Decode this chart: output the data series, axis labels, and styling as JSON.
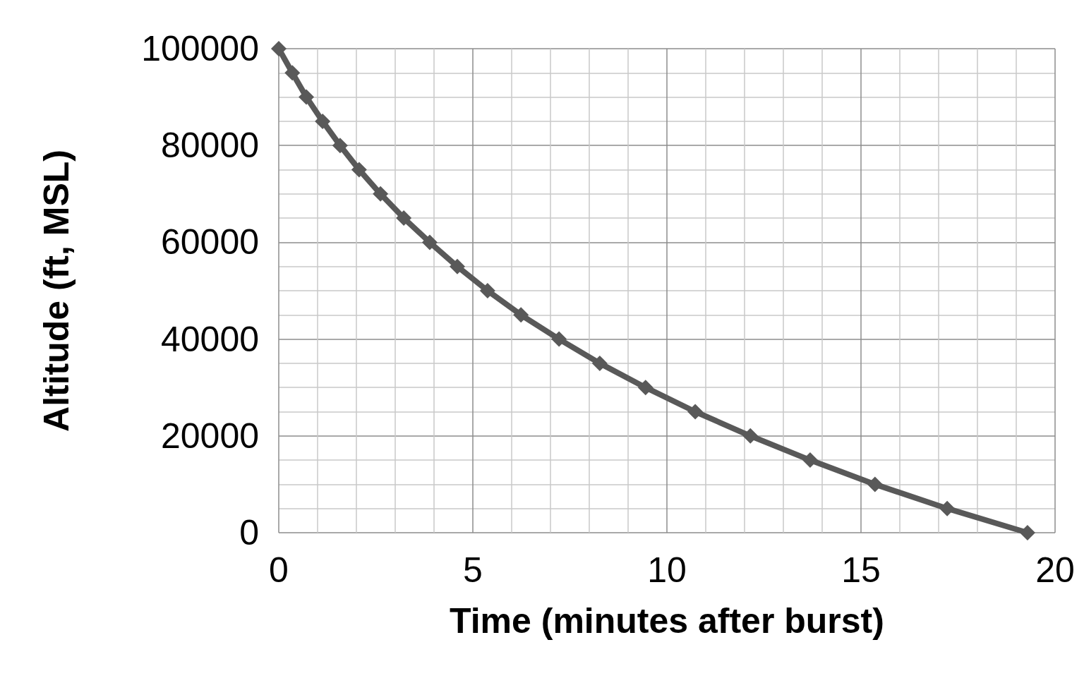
{
  "chart_data": {
    "type": "line",
    "xlabel": "Time (minutes after burst)",
    "ylabel": "Altitude (ft, MSL)",
    "x": [
      0,
      0.35,
      0.71,
      1.13,
      1.58,
      2.07,
      2.62,
      3.22,
      3.89,
      4.6,
      5.38,
      6.24,
      7.22,
      8.27,
      9.45,
      10.73,
      12.15,
      13.69,
      15.36,
      17.22,
      19.29
    ],
    "series": [
      {
        "color": "#595959",
        "values": [
          100000,
          95000,
          90000,
          85000,
          80000,
          75000,
          70000,
          65000,
          60000,
          55000,
          50000,
          45000,
          40000,
          35000,
          30000,
          25000,
          20000,
          15000,
          10000,
          5000,
          0
        ]
      }
    ],
    "xlim": [
      0,
      20
    ],
    "xticks": [
      0,
      5,
      10,
      15,
      20
    ],
    "ylim": [
      0,
      100000
    ],
    "yticks": [
      0,
      20000,
      40000,
      60000,
      80000,
      100000
    ],
    "grid": true,
    "marker": "diamond",
    "line_style": "solid"
  }
}
